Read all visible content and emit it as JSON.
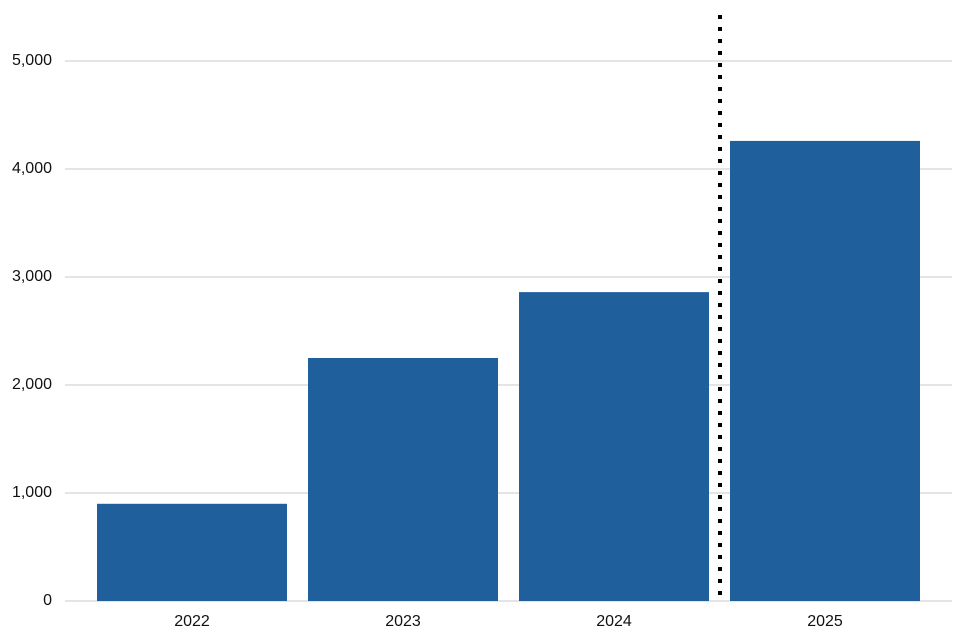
{
  "chart_data": {
    "type": "bar",
    "categories": [
      "2022",
      "2023",
      "2024",
      "2025"
    ],
    "values": [
      900,
      2250,
      2860,
      4260
    ],
    "color": "#1f5f9c",
    "ylim": [
      0,
      5000
    ],
    "yticks": [
      0,
      {
        "value": 1000,
        "label": "1,000"
      },
      {
        "value": 2000,
        "label": "2,000"
      },
      {
        "value": 3000,
        "label": "3,000"
      },
      {
        "value": 4000,
        "label": "4,000"
      },
      {
        "value": 5000,
        "label": "5,000"
      }
    ],
    "grid": true
  }
}
